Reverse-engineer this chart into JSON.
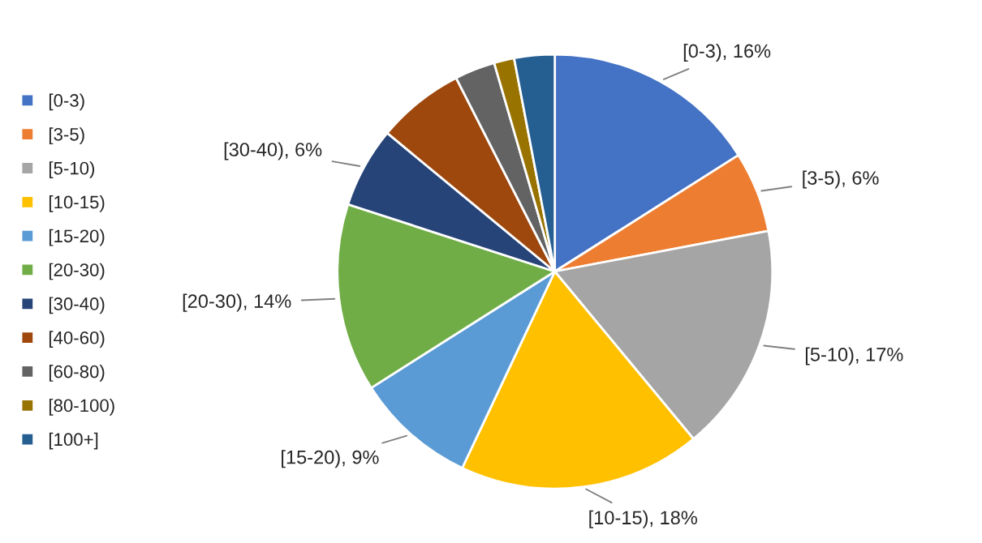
{
  "chart_data": {
    "type": "pie",
    "categories": [
      "[0-3)",
      "[3-5)",
      "[5-10)",
      "[10-15)",
      "[15-20)",
      "[20-30)",
      "[30-40)",
      "[40-60)",
      "[60-80)",
      "[80-100)",
      "[100+]"
    ],
    "values": [
      16,
      6,
      17,
      18,
      9,
      14,
      6,
      6.5,
      3,
      1.5,
      3
    ],
    "colors": [
      "#4472c4",
      "#ed7d31",
      "#a5a5a5",
      "#ffc000",
      "#5b9bd5",
      "#70ad47",
      "#264478",
      "#9e480e",
      "#636363",
      "#997300",
      "#255e91"
    ],
    "value_labels": [
      "[0-3), 16%",
      "[3-5), 6%",
      "[5-10), 17%",
      "[10-15), 18%",
      "[15-20), 9%",
      "[20-30), 14%",
      "[30-40), 6%",
      null,
      null,
      null,
      null
    ],
    "legend": "left"
  }
}
